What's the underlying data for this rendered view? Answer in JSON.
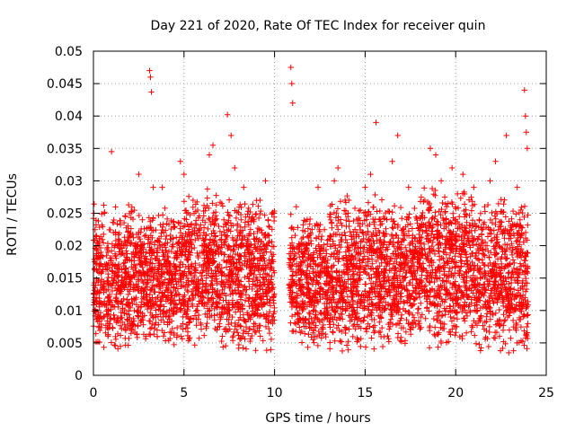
{
  "chart_data": {
    "type": "scatter",
    "title": "Day 221 of 2020, Rate Of TEC Index for receiver quin",
    "xlabel": "GPS time / hours",
    "ylabel": "ROTI / TECUs",
    "xlim": [
      0,
      25
    ],
    "ylim": [
      0,
      0.05
    ],
    "x_ticks": [
      0,
      5,
      10,
      15,
      20,
      25
    ],
    "x_tick_labels": [
      "0",
      "5",
      "10",
      "15",
      "20",
      "25"
    ],
    "y_ticks": [
      0,
      0.005,
      0.01,
      0.015,
      0.02,
      0.025,
      0.03,
      0.035,
      0.04,
      0.045,
      0.05
    ],
    "y_tick_labels": [
      "0",
      "0.005",
      "0.01",
      "0.015",
      "0.02",
      "0.025",
      "0.03",
      "0.035",
      "0.04",
      "0.045",
      "0.05"
    ],
    "grid": true,
    "marker": "+",
    "marker_color": "#ff0000",
    "data_gap_hours": [
      10.0,
      10.8
    ],
    "series": [
      {
        "name": "ROTI",
        "points": [
          [
            0.05,
            0.012
          ],
          [
            0.2,
            0.018
          ],
          [
            0.4,
            0.009
          ],
          [
            0.6,
            0.025
          ],
          [
            0.8,
            0.006
          ],
          [
            1.0,
            0.0345
          ],
          [
            1.2,
            0.017
          ],
          [
            1.4,
            0.021
          ],
          [
            1.6,
            0.011
          ],
          [
            1.8,
            0.014
          ],
          [
            2.0,
            0.008
          ],
          [
            2.2,
            0.019
          ],
          [
            2.5,
            0.031
          ],
          [
            2.7,
            0.024
          ],
          [
            2.9,
            0.006
          ],
          [
            3.1,
            0.047
          ],
          [
            3.15,
            0.046
          ],
          [
            3.2,
            0.0437
          ],
          [
            3.3,
            0.029
          ],
          [
            3.6,
            0.016
          ],
          [
            3.8,
            0.029
          ],
          [
            4.0,
            0.012
          ],
          [
            4.3,
            0.021
          ],
          [
            4.6,
            0.018
          ],
          [
            4.8,
            0.033
          ],
          [
            5.0,
            0.031
          ],
          [
            5.2,
            0.009
          ],
          [
            5.5,
            0.027
          ],
          [
            5.8,
            0.014
          ],
          [
            6.1,
            0.022
          ],
          [
            6.4,
            0.034
          ],
          [
            6.6,
            0.0355
          ],
          [
            6.9,
            0.016
          ],
          [
            7.2,
            0.024
          ],
          [
            7.4,
            0.0402
          ],
          [
            7.6,
            0.037
          ],
          [
            7.8,
            0.032
          ],
          [
            8.0,
            0.011
          ],
          [
            8.3,
            0.029
          ],
          [
            8.6,
            0.018
          ],
          [
            8.9,
            0.021
          ],
          [
            9.2,
            0.027
          ],
          [
            9.5,
            0.03
          ],
          [
            9.7,
            0.014
          ],
          [
            9.9,
            0.008
          ],
          [
            10.9,
            0.0475
          ],
          [
            10.95,
            0.045
          ],
          [
            11.0,
            0.042
          ],
          [
            11.2,
            0.026
          ],
          [
            11.5,
            0.019
          ],
          [
            11.8,
            0.024
          ],
          [
            12.1,
            0.012
          ],
          [
            12.4,
            0.029
          ],
          [
            12.7,
            0.016
          ],
          [
            13.0,
            0.021
          ],
          [
            13.3,
            0.03
          ],
          [
            13.5,
            0.032
          ],
          [
            13.8,
            0.018
          ],
          [
            14.1,
            0.027
          ],
          [
            14.4,
            0.01
          ],
          [
            14.7,
            0.023
          ],
          [
            15.0,
            0.029
          ],
          [
            15.3,
            0.031
          ],
          [
            15.6,
            0.039
          ],
          [
            15.9,
            0.016
          ],
          [
            16.2,
            0.024
          ],
          [
            16.5,
            0.033
          ],
          [
            16.8,
            0.037
          ],
          [
            17.1,
            0.021
          ],
          [
            17.4,
            0.029
          ],
          [
            17.7,
            0.011
          ],
          [
            18.0,
            0.019
          ],
          [
            18.3,
            0.027
          ],
          [
            18.6,
            0.035
          ],
          [
            18.9,
            0.034
          ],
          [
            19.2,
            0.03
          ],
          [
            19.5,
            0.026
          ],
          [
            19.8,
            0.032
          ],
          [
            20.1,
            0.028
          ],
          [
            20.4,
            0.031
          ],
          [
            20.7,
            0.016
          ],
          [
            21.0,
            0.029
          ],
          [
            21.3,
            0.024
          ],
          [
            21.6,
            0.026
          ],
          [
            21.9,
            0.03
          ],
          [
            22.2,
            0.033
          ],
          [
            22.5,
            0.023
          ],
          [
            22.8,
            0.037
          ],
          [
            23.1,
            0.019
          ],
          [
            23.4,
            0.029
          ],
          [
            23.6,
            0.0255
          ],
          [
            23.8,
            0.044
          ],
          [
            23.85,
            0.04
          ],
          [
            23.9,
            0.0375
          ],
          [
            23.95,
            0.035
          ]
        ]
      }
    ],
    "dense_band_profile": [
      {
        "x_start": 0.0,
        "x_end": 2.3,
        "y_min": 0.003,
        "y_max": 0.027
      },
      {
        "x_start": 2.3,
        "x_end": 3.0,
        "y_min": 0.005,
        "y_max": 0.025
      },
      {
        "x_start": 3.0,
        "x_end": 5.0,
        "y_min": 0.004,
        "y_max": 0.026
      },
      {
        "x_start": 5.0,
        "x_end": 7.0,
        "y_min": 0.004,
        "y_max": 0.029
      },
      {
        "x_start": 7.0,
        "x_end": 10.0,
        "y_min": 0.003,
        "y_max": 0.028
      },
      {
        "x_start": 10.8,
        "x_end": 13.0,
        "y_min": 0.004,
        "y_max": 0.025
      },
      {
        "x_start": 13.0,
        "x_end": 16.0,
        "y_min": 0.003,
        "y_max": 0.028
      },
      {
        "x_start": 16.0,
        "x_end": 18.0,
        "y_min": 0.004,
        "y_max": 0.027
      },
      {
        "x_start": 18.0,
        "x_end": 21.0,
        "y_min": 0.004,
        "y_max": 0.03
      },
      {
        "x_start": 21.0,
        "x_end": 24.0,
        "y_min": 0.003,
        "y_max": 0.028
      }
    ]
  }
}
